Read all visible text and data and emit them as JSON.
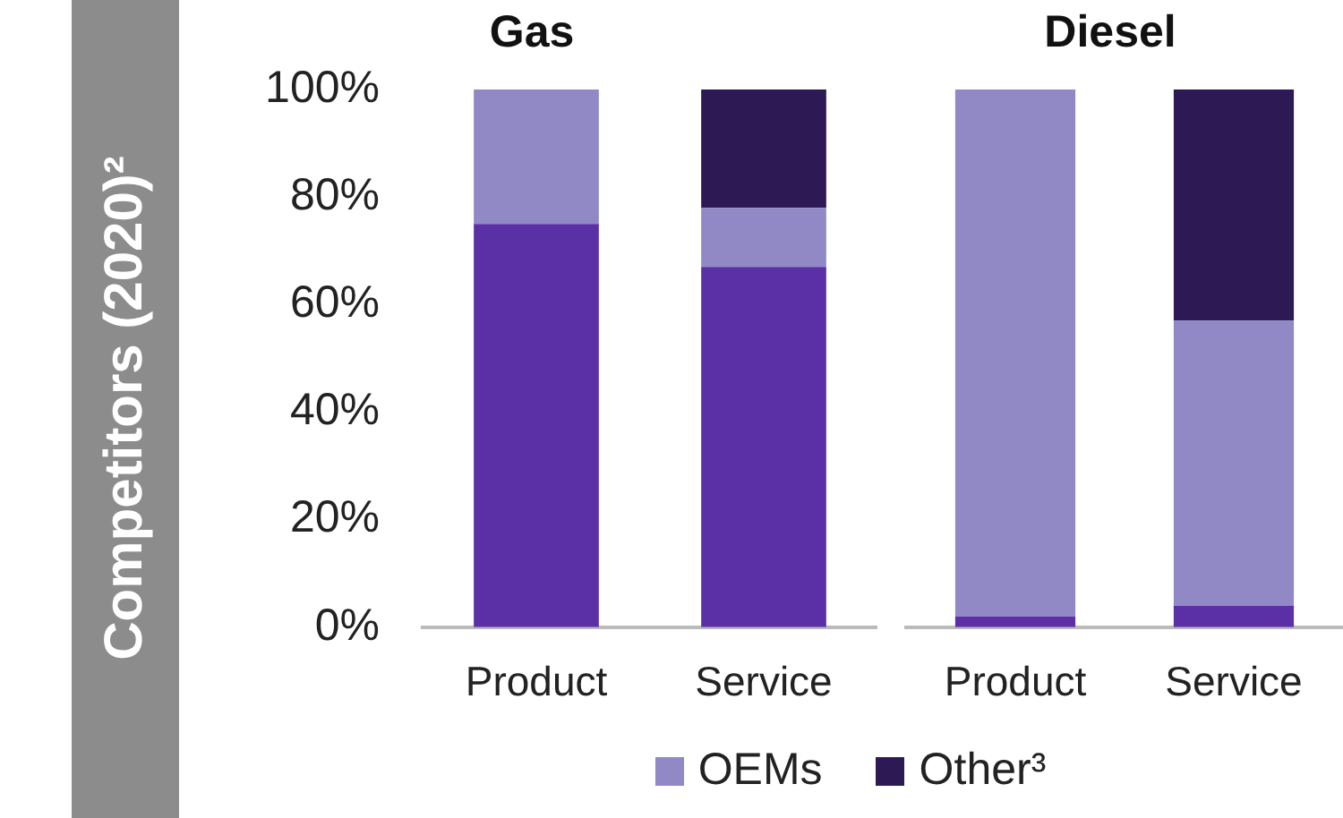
{
  "chart_data": [
    {
      "type": "bar",
      "title": "Gas",
      "ylabel": "Competitors (2020)²",
      "categories": [
        "Product",
        "Service"
      ],
      "stacked": true,
      "ylim": [
        0,
        100
      ],
      "yticks": [
        {
          "value": 0,
          "label": "0%"
        },
        {
          "value": 20,
          "label": "20%"
        },
        {
          "value": 40,
          "label": "40%"
        },
        {
          "value": 60,
          "label": "60%"
        },
        {
          "value": 80,
          "label": "80%"
        },
        {
          "value": 100,
          "label": "100%"
        }
      ],
      "legend": "bottom",
      "series": [
        {
          "color": "#5b2fa6",
          "values": [
            75,
            67
          ]
        },
        {
          "name": "OEMs",
          "color": "#9189c6",
          "values": [
            25,
            11
          ]
        },
        {
          "name": "Other³",
          "color": "#2d1a55",
          "values": [
            0,
            22
          ]
        }
      ]
    },
    {
      "type": "bar",
      "title": "Diesel",
      "categories": [
        "Product",
        "Service"
      ],
      "stacked": true,
      "ylim": [
        0,
        100
      ],
      "tick_labels": "x",
      "series": [
        {
          "color": "#5b2fa6",
          "values": [
            2,
            4
          ]
        },
        {
          "color": "#9189c6",
          "values": [
            98,
            53
          ]
        },
        {
          "color": "#2d1a55",
          "values": [
            0,
            43
          ]
        }
      ]
    }
  ]
}
